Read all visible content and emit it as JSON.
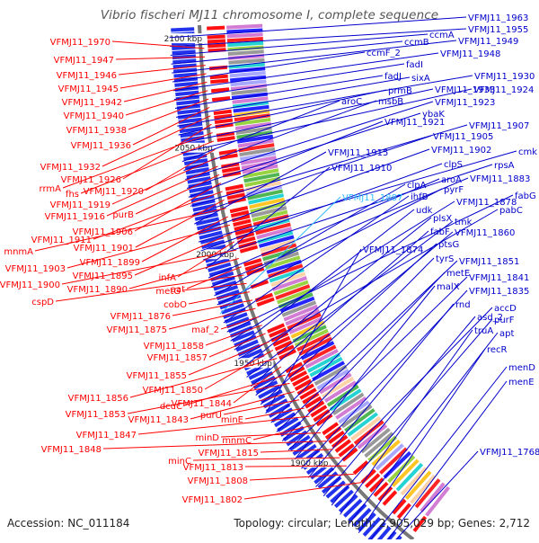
{
  "title": "Vibrio fischeri MJ11 chromosome I, complete sequence",
  "footer": {
    "accession": "Accession: NC_011184",
    "stats": "Topology: circular; Length: 2,905,029 bp; Genes: 2,712"
  },
  "ticks": [
    "2100 kbp",
    "2050 kbp",
    "2000 kbp",
    "1950 kbp",
    "1900 kbp"
  ],
  "colors": {
    "left": "#ff0000",
    "right": "#0000cc",
    "highlight": "#33bbff",
    "backbone": "#777777"
  },
  "labels_left": [
    "VFMJ11_1970",
    "VFMJ11_1947",
    "VFMJ11_1946",
    "VFMJ11_1945",
    "VFMJ11_1942",
    "VFMJ11_1940",
    "VFMJ11_1938",
    "VFMJ11_1936",
    "VFMJ11_1932",
    "VFMJ11_1926",
    "rrmA",
    "fhs",
    "VFMJ11_1920",
    "VFMJ11_1919",
    "VFMJ11_1916",
    "purB",
    "VFMJ11_1906",
    "VFMJ11_1911",
    "VFMJ11_1901",
    "mnmA",
    "VFMJ11_1899",
    "VFMJ11_1903",
    "VFMJ11_1895",
    "infA",
    "VFMJ11_1900",
    "VFMJ11_1890",
    "aat",
    "cspD",
    "metG",
    "cobO",
    "VFMJ11_1876",
    "VFMJ11_1875",
    "maf_2",
    "VFMJ11_1858",
    "VFMJ11_1857",
    "VFMJ11_1855",
    "VFMJ11_1850",
    "VFMJ11_1856",
    "VFMJ11_1844",
    "dcuC",
    "VFMJ11_1853",
    "VFMJ11_1843",
    "purU",
    "minE",
    "VFMJ11_1847",
    "mnmC",
    "minD",
    "VFMJ11_1848",
    "VFMJ11_1815",
    "minC",
    "VFMJ11_1813",
    "VFMJ11_1808",
    "VFMJ11_1802"
  ],
  "labels_right": [
    "VFMJ11_1963",
    "VFMJ11_1955",
    "ccmA",
    "ccmB",
    "VFMJ11_1949",
    "ccmF_2",
    "VFMJ11_1948",
    "fadI",
    "fadJ",
    "sixA",
    "VFMJ11_1930",
    "prmB",
    "VFMJ11_1933",
    "VFMJ11_1924",
    "aroC",
    "msbB",
    "VFMJ11_1923",
    "ybaK",
    "VFMJ11_1921",
    "VFMJ11_1907",
    "VFMJ11_1905",
    "VFMJ11_1915",
    "VFMJ11_1902",
    "cmk",
    "clpS",
    "rpsA",
    "VFMJ11_1910",
    "aroA",
    "VFMJ11_1883",
    "clpA",
    "pyrF",
    "VFMJ11_1887",
    "ihfB",
    "fabG",
    "VFMJ11_1878",
    "udk",
    "pabC",
    "plsX",
    "tmk",
    "fabF",
    "VFMJ11_1860",
    "ptsG",
    "VFMJ11_1874",
    "tyrS",
    "VFMJ11_1851",
    "metE",
    "VFMJ11_1841",
    "malX",
    "VFMJ11_1835",
    "rnd",
    "accD",
    "asd_2",
    "purF",
    "truA",
    "apt",
    "recR",
    "menD",
    "menE",
    "VFMJ11_1768"
  ]
}
